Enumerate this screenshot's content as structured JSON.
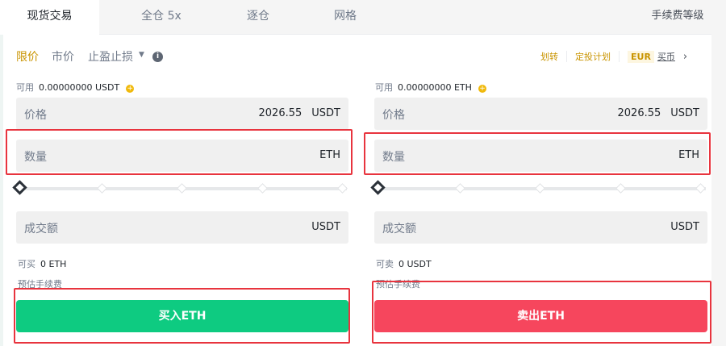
{
  "tabs": [
    "现货交易",
    "全仓 5x",
    "逐仓",
    "网格"
  ],
  "fee_level": "手续费等级",
  "order_types": [
    "限价",
    "市价",
    "止盈止损"
  ],
  "links": {
    "transfer": "划转",
    "dca": "定投计划",
    "currency": "EUR",
    "buy_crypto": "买币"
  },
  "buy": {
    "avail_label": "可用",
    "avail_value": "0.00000000 USDT",
    "price_label": "价格",
    "price_value": "2026.55",
    "price_unit": "USDT",
    "qty_label": "数量",
    "qty_unit": "ETH",
    "amount_label": "成交额",
    "amount_unit": "USDT",
    "max_label": "可买",
    "max_value": "0 ETH",
    "fee_label": "预估手续费",
    "button": "买入ETH",
    "slider_percent": 0
  },
  "sell": {
    "avail_label": "可用",
    "avail_value": "0.00000000 ETH",
    "price_label": "价格",
    "price_value": "2026.55",
    "price_unit": "USDT",
    "qty_label": "数量",
    "qty_unit": "ETH",
    "amount_label": "成交额",
    "amount_unit": "USDT",
    "max_label": "可卖",
    "max_value": "0 USDT",
    "fee_label": "预估手续费",
    "button": "卖出ETH",
    "slider_percent": 0
  },
  "colors": {
    "accent": "#c99400",
    "buy": "#0ecb81",
    "sell": "#f6465d",
    "highlight": "#e8343e"
  }
}
